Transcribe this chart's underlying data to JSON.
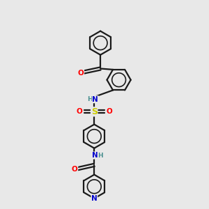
{
  "background_color": "#e8e8e8",
  "bond_color": "#1a1a1a",
  "atom_colors": {
    "N": "#0000cc",
    "O": "#ff0000",
    "S": "#cccc00",
    "H": "#4a9090",
    "C": "#1a1a1a"
  },
  "figsize": [
    3.0,
    3.0
  ],
  "dpi": 100,
  "ring_r": 0.58,
  "lw": 1.6
}
